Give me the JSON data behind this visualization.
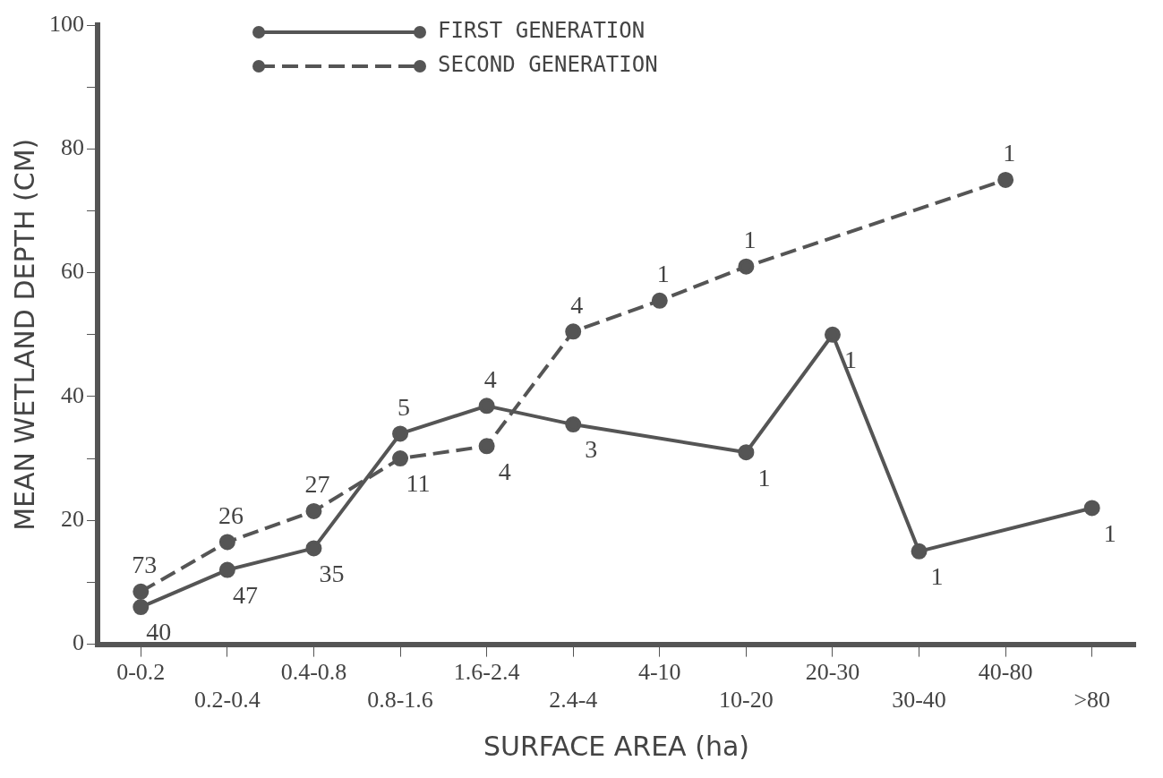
{
  "chart_data": {
    "type": "line",
    "xlabel": "SURFACE AREA (ha)",
    "ylabel": "MEAN WETLAND DEPTH (CM)",
    "categories": [
      "0-0.2",
      "0.2-0.4",
      "0.4-0.8",
      "0.8-1.6",
      "1.6-2.4",
      "2.4-4",
      "4-10",
      "10-20",
      "20-30",
      "30-40",
      "40-80",
      ">80"
    ],
    "series": [
      {
        "name": "FIRST GENERATION",
        "color": "#555555",
        "line_style": "solid",
        "values": [
          6,
          12,
          15.5,
          34,
          38.5,
          35.5,
          null,
          31,
          50,
          15,
          null,
          22
        ]
      },
      {
        "name": "SECOND GENERATION",
        "color": "#555555",
        "line_style": "dashed",
        "values": [
          8.5,
          16.5,
          21.5,
          30,
          32,
          50.5,
          55.5,
          61,
          null,
          null,
          75,
          null
        ]
      }
    ],
    "annotations": [
      {
        "text": "73",
        "x": "0-0.2",
        "y": 8.5
      },
      {
        "text": "40",
        "x": "0-0.2",
        "y": 6
      },
      {
        "text": "26",
        "x": "0.2-0.4",
        "y": 16.5
      },
      {
        "text": "47",
        "x": "0.2-0.4",
        "y": 12
      },
      {
        "text": "27",
        "x": "0.4-0.8",
        "y": 21.5
      },
      {
        "text": "35",
        "x": "0.4-0.8",
        "y": 15.5
      },
      {
        "text": "5",
        "x": "0.8-1.6",
        "y": 34
      },
      {
        "text": "11",
        "x": "0.8-1.6",
        "y": 30
      },
      {
        "text": "4",
        "x": "1.6-2.4",
        "y": 38.5
      },
      {
        "text": "4",
        "x": "1.6-2.4",
        "y": 32
      },
      {
        "text": "4",
        "x": "2.4-4",
        "y": 50.5
      },
      {
        "text": "3",
        "x": "2.4-4",
        "y": 35.5
      },
      {
        "text": "1",
        "x": "4-10",
        "y": 55.5
      },
      {
        "text": "1",
        "x": "10-20",
        "y": 61
      },
      {
        "text": "1",
        "x": "10-20",
        "y": 31
      },
      {
        "text": "1",
        "x": "20-30",
        "y": 50
      },
      {
        "text": "1",
        "x": "30-40",
        "y": 15
      },
      {
        "text": "1",
        "x": "40-80",
        "y": 75
      },
      {
        "text": "1",
        "x": ">80",
        "y": 22
      }
    ],
    "ylim": [
      0,
      100
    ],
    "yticks": [
      0,
      {
        "value": 10,
        "label": null
      },
      20,
      {
        "value": 30,
        "label": null
      },
      40,
      {
        "value": 50,
        "label": null
      },
      60,
      {
        "value": 70,
        "label": null
      },
      80,
      {
        "value": 90,
        "label": null
      },
      100
    ],
    "grid": false,
    "legend": "top left",
    "marker": "circle"
  }
}
